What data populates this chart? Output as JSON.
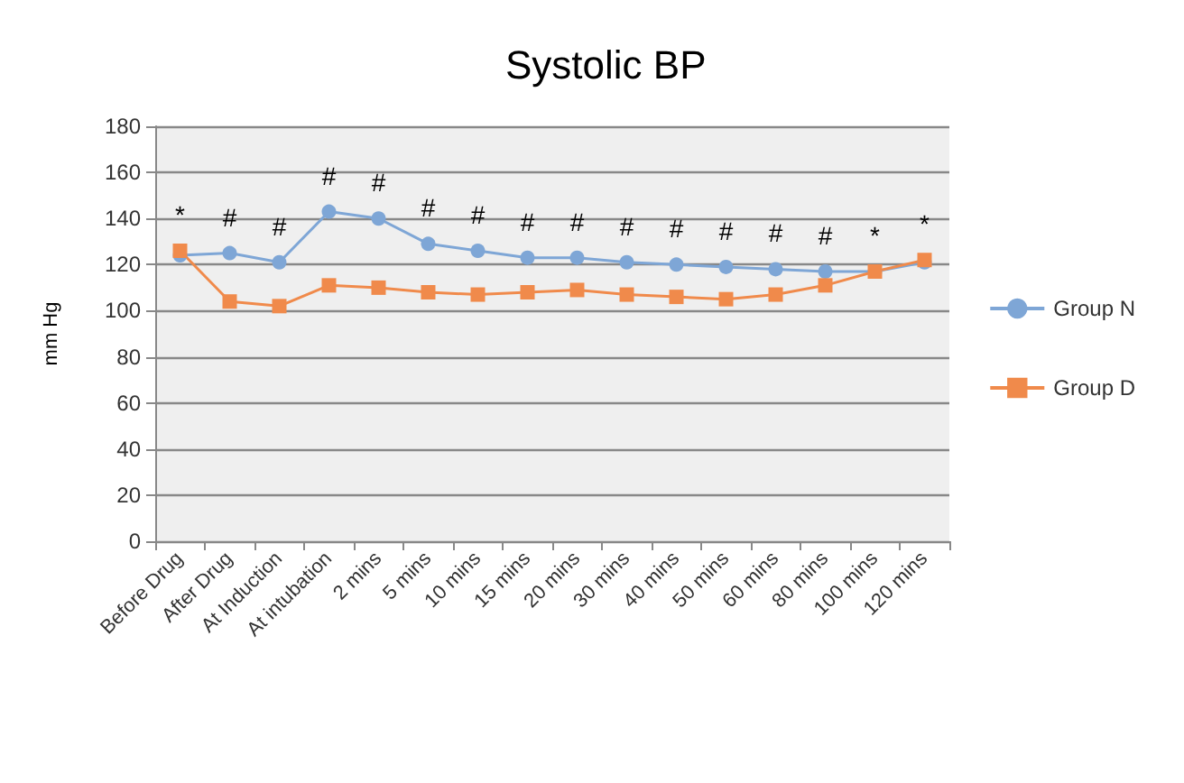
{
  "chart_data": {
    "type": "line",
    "title": "Systolic BP",
    "ylabel": "mm Hg",
    "categories": [
      "Before Drug",
      "After Drug",
      "At Induction",
      "At intubation",
      "2 mins",
      "5 mins",
      "10 mins",
      "15 mins",
      "20 mins",
      "30 mins",
      "40 mins",
      "50 mins",
      "60 mins",
      "80 mins",
      "100 mins",
      "120 mins"
    ],
    "series": [
      {
        "name": "Group N",
        "color": "#7ea6d6",
        "marker": "circle",
        "values": [
          124,
          125,
          121,
          143,
          140,
          129,
          126,
          123,
          123,
          121,
          120,
          119,
          118,
          117,
          117,
          121
        ]
      },
      {
        "name": "Group D",
        "color": "#f08a4b",
        "marker": "square",
        "values": [
          126,
          104,
          102,
          111,
          110,
          108,
          107,
          108,
          109,
          107,
          106,
          105,
          107,
          111,
          117,
          122
        ]
      }
    ],
    "annotations": [
      "*",
      "#",
      "#",
      "#",
      "#",
      "#",
      "#",
      "#",
      "#",
      "#",
      "#",
      "#",
      "#",
      "#",
      "*",
      "*"
    ],
    "ylim": [
      0,
      180
    ],
    "yticks": [
      0,
      20,
      40,
      60,
      80,
      100,
      120,
      140,
      160,
      180
    ],
    "grid": "y",
    "legend": "right"
  }
}
